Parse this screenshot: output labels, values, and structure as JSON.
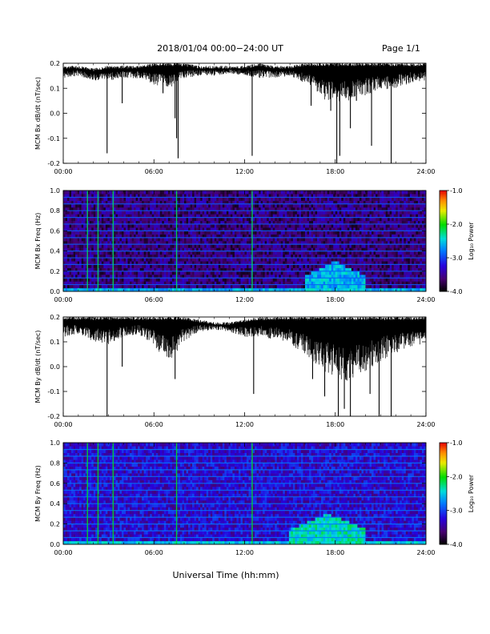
{
  "header": {
    "title": "2018/01/04   00:00−24:00 UT",
    "page": "Page 1/1"
  },
  "footer": {
    "xlabel": "Universal Time (hh:mm)"
  },
  "colors": {
    "trace": "#000000",
    "background": "#ffffff"
  },
  "chart_data": [
    {
      "type": "line",
      "ylabel": "MCM Bx dB/dt (nT/sec)",
      "xlim": [
        "00:00",
        "24:00"
      ],
      "ylim": [
        -0.2,
        0.2
      ],
      "x_ticks": [
        "00:00",
        "06:00",
        "12:00",
        "18:00",
        "24:00"
      ],
      "y_ticks": [
        "-0.2",
        "-0.1",
        "0.0",
        "0.1",
        "0.2"
      ],
      "envelope": {
        "hours": [
          0,
          1,
          2,
          3,
          4,
          5,
          6,
          7,
          8,
          9,
          10,
          11,
          12,
          13,
          14,
          15,
          16,
          17,
          18,
          19,
          20,
          21,
          22,
          23,
          24
        ],
        "upper": [
          0.19,
          0.19,
          0.18,
          0.19,
          0.19,
          0.19,
          0.2,
          0.2,
          0.2,
          0.19,
          0.19,
          0.19,
          0.19,
          0.2,
          0.19,
          0.19,
          0.2,
          0.2,
          0.2,
          0.2,
          0.2,
          0.2,
          0.2,
          0.2,
          0.2
        ],
        "lower": [
          0.14,
          0.15,
          0.13,
          0.13,
          0.14,
          0.14,
          0.11,
          0.1,
          0.14,
          0.15,
          0.15,
          0.16,
          0.15,
          0.14,
          0.14,
          0.15,
          0.12,
          0.06,
          0.04,
          0.05,
          0.07,
          0.09,
          0.1,
          0.12,
          0.13
        ]
      },
      "spikes": [
        [
          2.9,
          -0.16
        ],
        [
          3.9,
          0.04
        ],
        [
          7.5,
          -0.1
        ],
        [
          7.4,
          -0.02
        ],
        [
          7.6,
          -0.18
        ],
        [
          12.5,
          -0.17
        ],
        [
          16.4,
          0.03
        ],
        [
          17.7,
          0.01
        ],
        [
          18.1,
          -0.2
        ],
        [
          18.3,
          -0.17
        ],
        [
          19.0,
          -0.06
        ],
        [
          20.4,
          -0.13
        ],
        [
          21.7,
          -0.2
        ],
        [
          6.6,
          0.08
        ],
        [
          19.4,
          0.05
        ]
      ]
    },
    {
      "type": "heatmap",
      "ylabel": "MCM Bx Freq (Hz)",
      "colorbar_label": "Log₁₀ Power",
      "xlim": [
        "00:00",
        "24:00"
      ],
      "ylim": [
        0.0,
        1.0
      ],
      "x_ticks": [
        "00:00",
        "06:00",
        "12:00",
        "18:00",
        "24:00"
      ],
      "y_ticks": [
        "0.0",
        "0.2",
        "0.4",
        "0.6",
        "0.8",
        "1.0"
      ],
      "colorbar_ticks": [
        "-1.0",
        "-2.0",
        "-3.0",
        "-4.0"
      ],
      "clim": [
        -4.0,
        -1.0
      ],
      "background_level": -3.6,
      "harmonic_lines_hz": [
        0.067,
        0.133,
        0.2,
        0.267,
        0.333,
        0.4,
        0.467,
        0.533,
        0.6,
        0.667,
        0.733,
        0.8,
        0.867,
        0.933
      ],
      "harmonic_level": -2.9,
      "vertical_events_hours": [
        1.6,
        2.3,
        3.3,
        7.5,
        12.5
      ],
      "event_level": -2.2,
      "low_freq_enhancement": {
        "hours": [
          16,
          20
        ],
        "max_hz": 0.3,
        "level": -2.6
      }
    },
    {
      "type": "line",
      "ylabel": "MCM By dB/dt (nT/sec)",
      "xlim": [
        "00:00",
        "24:00"
      ],
      "ylim": [
        -0.2,
        0.2
      ],
      "x_ticks": [
        "00:00",
        "06:00",
        "12:00",
        "18:00",
        "24:00"
      ],
      "y_ticks": [
        "-0.2",
        "-0.1",
        "0.0",
        "0.1",
        "0.2"
      ],
      "envelope": {
        "hours": [
          0,
          1,
          2,
          3,
          4,
          5,
          6,
          7,
          8,
          9,
          10,
          11,
          12,
          13,
          14,
          15,
          16,
          17,
          18,
          19,
          20,
          21,
          22,
          23,
          24
        ],
        "upper": [
          0.2,
          0.2,
          0.2,
          0.2,
          0.2,
          0.2,
          0.2,
          0.2,
          0.2,
          0.19,
          0.18,
          0.18,
          0.19,
          0.2,
          0.2,
          0.2,
          0.2,
          0.2,
          0.2,
          0.2,
          0.2,
          0.2,
          0.2,
          0.2,
          0.2
        ],
        "lower": [
          0.12,
          0.13,
          0.1,
          0.09,
          0.12,
          0.13,
          0.08,
          0.02,
          0.1,
          0.14,
          0.15,
          0.14,
          0.12,
          0.12,
          0.11,
          0.09,
          0.05,
          -0.01,
          -0.05,
          -0.06,
          -0.02,
          0.02,
          0.05,
          0.08,
          0.09
        ]
      },
      "spikes": [
        [
          2.9,
          -0.2
        ],
        [
          3.9,
          0.0
        ],
        [
          7.4,
          -0.05
        ],
        [
          12.6,
          -0.11
        ],
        [
          16.5,
          -0.05
        ],
        [
          17.3,
          -0.12
        ],
        [
          18.2,
          -0.2
        ],
        [
          18.6,
          -0.17
        ],
        [
          19.0,
          -0.2
        ],
        [
          20.3,
          -0.11
        ],
        [
          20.9,
          -0.2
        ],
        [
          21.7,
          -0.2
        ]
      ]
    },
    {
      "type": "heatmap",
      "ylabel": "MCM By Freq (Hz)",
      "colorbar_label": "Log₁₀ Power",
      "xlim": [
        "00:00",
        "24:00"
      ],
      "ylim": [
        0.0,
        1.0
      ],
      "x_ticks": [
        "00:00",
        "06:00",
        "12:00",
        "18:00",
        "24:00"
      ],
      "y_ticks": [
        "0.0",
        "0.2",
        "0.4",
        "0.6",
        "0.8",
        "1.0"
      ],
      "colorbar_ticks": [
        "-1.0",
        "-2.0",
        "-3.0",
        "-4.0"
      ],
      "clim": [
        -4.0,
        -1.0
      ],
      "background_level": -3.3,
      "harmonic_lines_hz": [
        0.067,
        0.133,
        0.2,
        0.267,
        0.333,
        0.4,
        0.467,
        0.533,
        0.6,
        0.667,
        0.733,
        0.8,
        0.867,
        0.933
      ],
      "harmonic_level": -2.8,
      "vertical_events_hours": [
        1.6,
        2.3,
        3.3,
        7.5,
        12.5
      ],
      "event_level": -2.1,
      "low_freq_enhancement": {
        "hours": [
          15,
          20
        ],
        "max_hz": 0.3,
        "level": -2.4
      }
    }
  ]
}
